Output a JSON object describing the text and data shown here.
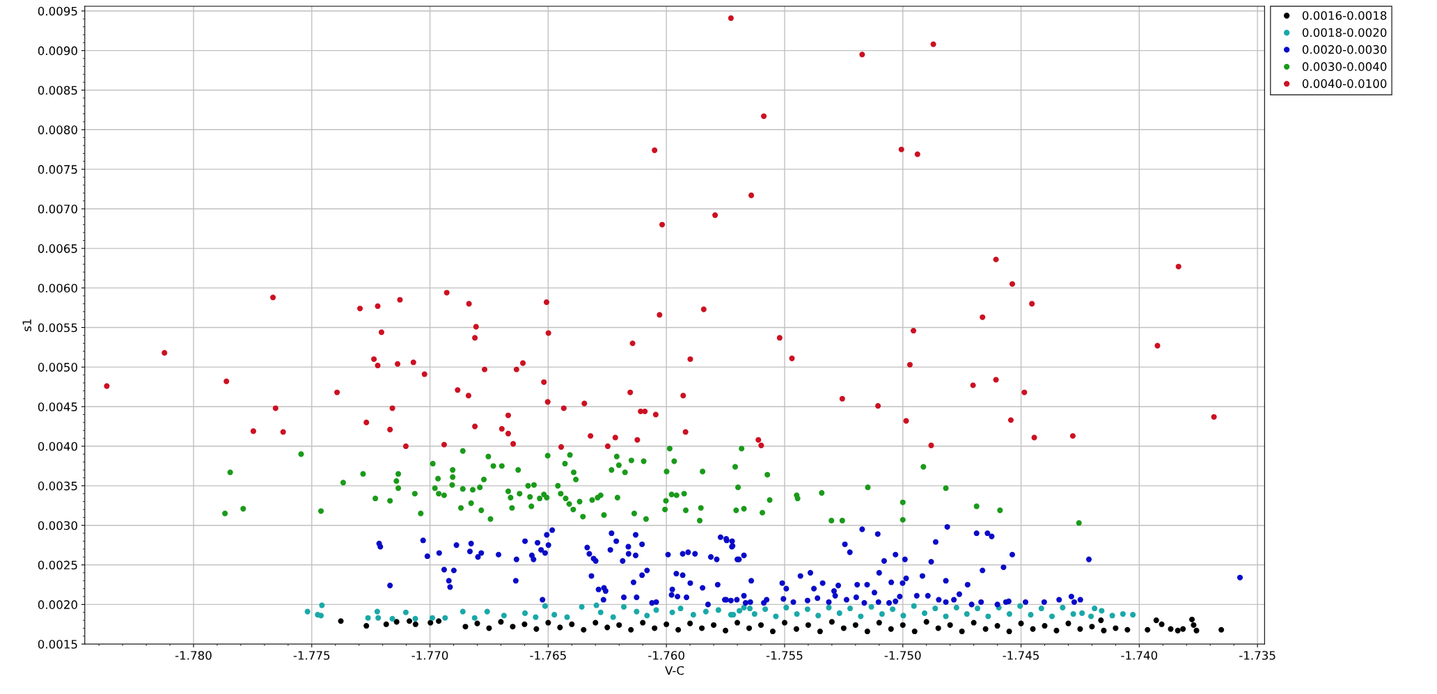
{
  "chart_data": {
    "type": "scatter",
    "xlabel": "V-C",
    "ylabel": "s1",
    "xlim": [
      -1.7846,
      -1.7347
    ],
    "ylim": [
      0.0015,
      0.00956
    ],
    "xticks": [
      {
        "value": -1.78,
        "label": "-1.780"
      },
      {
        "value": -1.775,
        "label": "-1.775"
      },
      {
        "value": -1.77,
        "label": "-1.770"
      },
      {
        "value": -1.765,
        "label": "-1.765"
      },
      {
        "value": -1.76,
        "label": "-1.760"
      },
      {
        "value": -1.755,
        "label": "-1.755"
      },
      {
        "value": -1.75,
        "label": "-1.750"
      },
      {
        "value": -1.745,
        "label": "-1.745"
      },
      {
        "value": -1.74,
        "label": "-1.740"
      },
      {
        "value": -1.735,
        "label": "-1.735"
      }
    ],
    "yticks": [
      {
        "value": 0.0015,
        "label": "0.0015"
      },
      {
        "value": 0.002,
        "label": "0.0020"
      },
      {
        "value": 0.0025,
        "label": "0.0025"
      },
      {
        "value": 0.003,
        "label": "0.0030"
      },
      {
        "value": 0.0035,
        "label": "0.0035"
      },
      {
        "value": 0.004,
        "label": "0.0040"
      },
      {
        "value": 0.0045,
        "label": "0.0045"
      },
      {
        "value": 0.005,
        "label": "0.0050"
      },
      {
        "value": 0.0055,
        "label": "0.0055"
      },
      {
        "value": 0.006,
        "label": "0.0060"
      },
      {
        "value": 0.0065,
        "label": "0.0065"
      },
      {
        "value": 0.007,
        "label": "0.0070"
      },
      {
        "value": 0.0075,
        "label": "0.0075"
      },
      {
        "value": 0.008,
        "label": "0.0080"
      },
      {
        "value": 0.0085,
        "label": "0.0085"
      },
      {
        "value": 0.009,
        "label": "0.0090"
      },
      {
        "value": 0.0095,
        "label": "0.0095"
      }
    ],
    "grid": true,
    "legend": "top right",
    "marker": "circle",
    "series": [
      {
        "name": "0.0016-0.0018",
        "color": "#000000",
        "x": [
          -1.77377,
          -1.77269,
          -1.77185,
          -1.77141,
          -1.77087,
          -1.77061,
          -1.76998,
          -1.76963,
          -1.7685,
          -1.768,
          -1.7675,
          -1.767,
          -1.7665,
          -1.766,
          -1.7655,
          -1.765,
          -1.7645,
          -1.764,
          -1.7635,
          -1.763,
          -1.7625,
          -1.762,
          -1.7615,
          -1.761,
          -1.7605,
          -1.76,
          -1.7595,
          -1.759,
          -1.7585,
          -1.758,
          -1.7575,
          -1.757,
          -1.7565,
          -1.756,
          -1.7555,
          -1.755,
          -1.7545,
          -1.754,
          -1.7535,
          -1.753,
          -1.7525,
          -1.752,
          -1.7515,
          -1.751,
          -1.7505,
          -1.75,
          -1.7495,
          -1.749,
          -1.7485,
          -1.748,
          -1.7475,
          -1.747,
          -1.7465,
          -1.746,
          -1.7455,
          -1.745,
          -1.7445,
          -1.744,
          -1.7435,
          -1.743,
          -1.7425,
          -1.742,
          -1.7415,
          -1.741,
          -1.7405,
          -1.74162,
          -1.73965,
          -1.73928,
          -1.73905,
          -1.73867,
          -1.73837,
          -1.73815,
          -1.73777,
          -1.7377,
          -1.73758,
          -1.73653
        ],
        "values": [
          0.00179,
          0.00173,
          0.00175,
          0.00178,
          0.00179,
          0.00175,
          0.00177,
          0.00179,
          0.00172,
          0.00176,
          0.0017,
          0.00178,
          0.00172,
          0.00175,
          0.00169,
          0.00177,
          0.00171,
          0.00175,
          0.00168,
          0.00177,
          0.00171,
          0.00174,
          0.00168,
          0.00177,
          0.0017,
          0.00175,
          0.00168,
          0.00176,
          0.0017,
          0.00174,
          0.00167,
          0.00177,
          0.0017,
          0.00174,
          0.00166,
          0.00177,
          0.00169,
          0.00174,
          0.00166,
          0.00178,
          0.0017,
          0.00174,
          0.00166,
          0.00177,
          0.00169,
          0.00174,
          0.00166,
          0.00178,
          0.0017,
          0.00174,
          0.00166,
          0.00177,
          0.00169,
          0.00173,
          0.00166,
          0.00176,
          0.00169,
          0.00173,
          0.00167,
          0.00176,
          0.00169,
          0.00172,
          0.00167,
          0.0017,
          0.00168,
          0.0018,
          0.00168,
          0.0018,
          0.00175,
          0.00169,
          0.00167,
          0.00169,
          0.00181,
          0.00174,
          0.00167,
          0.00168
        ]
      },
      {
        "name": "0.0018-0.0020",
        "color": "#1aa8a8",
        "x": [
          -1.77518,
          -1.77475,
          -1.77457,
          -1.77461,
          -1.77262,
          -1.77223,
          -1.77219,
          -1.77159,
          -1.77102,
          -1.77062,
          -1.7699,
          -1.76936,
          -1.76861,
          -1.76811,
          -1.76758,
          -1.76687,
          -1.76598,
          -1.76553,
          -1.76513,
          -1.76474,
          -1.7642,
          -1.76358,
          -1.76296,
          -1.76278,
          -1.76225,
          -1.7618,
          -1.76126,
          -1.76082,
          -1.76043,
          -1.75975,
          -1.7594,
          -1.75886,
          -1.75833,
          -1.7578,
          -1.75727,
          -1.75691,
          -1.75647,
          -1.75717,
          -1.75672,
          -1.75627,
          -1.75582,
          -1.75537,
          -1.75493,
          -1.75448,
          -1.75403,
          -1.75358,
          -1.75313,
          -1.75268,
          -1.75223,
          -1.75178,
          -1.75133,
          -1.75088,
          -1.75043,
          -1.74998,
          -1.74953,
          -1.74908,
          -1.74863,
          -1.74818,
          -1.74773,
          -1.74729,
          -1.74684,
          -1.74639,
          -1.74594,
          -1.74549,
          -1.74504,
          -1.74459,
          -1.74414,
          -1.74369,
          -1.74324,
          -1.74279,
          -1.74242,
          -1.74204,
          -1.74189,
          -1.74159,
          -1.74114,
          -1.74069,
          -1.74027
        ],
        "values": [
          0.00191,
          0.00187,
          0.00199,
          0.00186,
          0.00183,
          0.00191,
          0.00183,
          0.00182,
          0.0019,
          0.00182,
          0.00183,
          0.00183,
          0.00191,
          0.00183,
          0.00191,
          0.00186,
          0.00189,
          0.00184,
          0.00198,
          0.00187,
          0.00184,
          0.00197,
          0.00199,
          0.0019,
          0.00184,
          0.00197,
          0.00191,
          0.00186,
          0.00193,
          0.0019,
          0.00195,
          0.00187,
          0.00191,
          0.00193,
          0.00187,
          0.00192,
          0.00195,
          0.00187,
          0.00196,
          0.00188,
          0.00194,
          0.00185,
          0.00196,
          0.00188,
          0.00194,
          0.00186,
          0.00196,
          0.00189,
          0.00195,
          0.00185,
          0.00197,
          0.00188,
          0.00194,
          0.00186,
          0.00198,
          0.00189,
          0.00195,
          0.00185,
          0.00196,
          0.00188,
          0.00195,
          0.00185,
          0.00196,
          0.00188,
          0.00198,
          0.00187,
          0.00195,
          0.00185,
          0.00196,
          0.00188,
          0.00189,
          0.00185,
          0.00195,
          0.00192,
          0.00186,
          0.00188,
          0.00187
        ]
      },
      {
        "name": "0.0020-0.0030",
        "color": "#0a0ac8",
        "x": [
          -1.77215,
          -1.7721,
          -1.77169,
          -1.77029,
          -1.77011,
          -1.76961,
          -1.7694,
          -1.76899,
          -1.7692,
          -1.76915,
          -1.76888,
          -1.76826,
          -1.76831,
          -1.76797,
          -1.76783,
          -1.7671,
          -1.76634,
          -1.76637,
          -1.76598,
          -1.76569,
          -1.76562,
          -1.76545,
          -1.7653,
          -1.76513,
          -1.76506,
          -1.76483,
          -1.76499,
          -1.76524,
          -1.76335,
          -1.76326,
          -1.76308,
          -1.76299,
          -1.76317,
          -1.76287,
          -1.76264,
          -1.76257,
          -1.76266,
          -1.76232,
          -1.76237,
          -1.76212,
          -1.76185,
          -1.76161,
          -1.7616,
          -1.7613,
          -1.76103,
          -1.7613,
          -1.76139,
          -1.76103,
          -1.76082,
          -1.7618,
          -1.76126,
          -1.76061,
          -1.76043,
          -1.75993,
          -1.75958,
          -1.75931,
          -1.75975,
          -1.75978,
          -1.75953,
          -1.75915,
          -1.75931,
          -1.75908,
          -1.75879,
          -1.75899,
          -1.75847,
          -1.75824,
          -1.75812,
          -1.75787,
          -1.75783,
          -1.75771,
          -1.75745,
          -1.75723,
          -1.75753,
          -1.75727,
          -1.757,
          -1.75747,
          -1.75722,
          -1.7572,
          -1.75693,
          -1.75672,
          -1.75641,
          -1.75747,
          -1.75702,
          -1.75672,
          -1.75665,
          -1.75645,
          -1.75588,
          -1.75576,
          -1.7551,
          -1.75493,
          -1.75505,
          -1.75433,
          -1.75391,
          -1.75376,
          -1.75339,
          -1.75463,
          -1.75403,
          -1.75361,
          -1.75313,
          -1.75273,
          -1.75291,
          -1.75286,
          -1.75245,
          -1.75224,
          -1.75172,
          -1.75106,
          -1.75238,
          -1.75193,
          -1.75197,
          -1.75163,
          -1.75151,
          -1.7512,
          -1.751,
          -1.75079,
          -1.75031,
          -1.74991,
          -1.75049,
          -1.75001,
          -1.74986,
          -1.75013,
          -1.75103,
          -1.75058,
          -1.75031,
          -1.74917,
          -1.7488,
          -1.74861,
          -1.74818,
          -1.74812,
          -1.74941,
          -1.74894,
          -1.74848,
          -1.74818,
          -1.74784,
          -1.74761,
          -1.74726,
          -1.74688,
          -1.74663,
          -1.74642,
          -1.74624,
          -1.74574,
          -1.74537,
          -1.74709,
          -1.74669,
          -1.746,
          -1.74564,
          -1.74552,
          -1.74481,
          -1.74402,
          -1.74339,
          -1.74287,
          -1.74275,
          -1.74249,
          -1.74213,
          -1.73574
        ],
        "values": [
          0.00277,
          0.00273,
          0.00224,
          0.00281,
          0.00261,
          0.00265,
          0.00244,
          0.00243,
          0.0023,
          0.00222,
          0.00275,
          0.00277,
          0.00267,
          0.0026,
          0.00265,
          0.00263,
          0.00257,
          0.0023,
          0.0028,
          0.00262,
          0.00257,
          0.00278,
          0.00269,
          0.00265,
          0.00288,
          0.00294,
          0.00275,
          0.00206,
          0.00272,
          0.00264,
          0.00258,
          0.00255,
          0.00236,
          0.00219,
          0.00221,
          0.00217,
          0.00206,
          0.0029,
          0.00269,
          0.0028,
          0.00255,
          0.00273,
          0.00264,
          0.00288,
          0.00276,
          0.00262,
          0.00228,
          0.00237,
          0.00243,
          0.00209,
          0.00209,
          0.00202,
          0.00203,
          0.00263,
          0.00239,
          0.00237,
          0.00219,
          0.00212,
          0.0021,
          0.00209,
          0.00264,
          0.00266,
          0.00264,
          0.00227,
          0.00221,
          0.002,
          0.0026,
          0.00257,
          0.00225,
          0.00285,
          0.00281,
          0.00273,
          0.00206,
          0.00205,
          0.00257,
          0.00283,
          0.0028,
          0.00274,
          0.00257,
          0.00262,
          0.0023,
          0.00206,
          0.00206,
          0.00211,
          0.00202,
          0.00203,
          0.00202,
          0.00206,
          0.00227,
          0.0022,
          0.00207,
          0.00236,
          0.0024,
          0.0022,
          0.00227,
          0.00203,
          0.00205,
          0.00208,
          0.00203,
          0.00224,
          0.00217,
          0.00211,
          0.00276,
          0.00266,
          0.00295,
          0.00289,
          0.00206,
          0.00225,
          0.00209,
          0.00202,
          0.00225,
          0.00215,
          0.0024,
          0.00255,
          0.00263,
          0.00257,
          0.00228,
          0.00227,
          0.00233,
          0.0021,
          0.00203,
          0.00202,
          0.00204,
          0.00236,
          0.00254,
          0.00279,
          0.0023,
          0.00298,
          0.00211,
          0.00211,
          0.00206,
          0.00203,
          0.00206,
          0.00213,
          0.00225,
          0.0029,
          0.00243,
          0.0029,
          0.00286,
          0.00247,
          0.00263,
          0.002,
          0.00203,
          0.002,
          0.00203,
          0.00204,
          0.00203,
          0.00203,
          0.00206,
          0.0021,
          0.00203,
          0.00206,
          0.00257,
          0.00234
        ]
      },
      {
        "name": "0.0030-0.0040",
        "color": "#1a9a1a",
        "x": [
          -1.77545,
          -1.77845,
          -1.77367,
          -1.77283,
          -1.77134,
          -1.77142,
          -1.76988,
          -1.76966,
          -1.76904,
          -1.76904,
          -1.76861,
          -1.76753,
          -1.76732,
          -1.76696,
          -1.76627,
          -1.76772,
          -1.76502,
          -1.76429,
          -1.76408,
          -1.76392,
          -1.76383,
          -1.76232,
          -1.7621,
          -1.76201,
          -1.76175,
          -1.76148,
          -1.76096,
          -1.75986,
          -1.75999,
          -1.75967,
          -1.75847,
          -1.75709,
          -1.75682,
          -1.77867,
          -1.7779,
          -1.77461,
          -1.77231,
          -1.77169,
          -1.77134,
          -1.77064,
          -1.77039,
          -1.76979,
          -1.76963,
          -1.7694,
          -1.76906,
          -1.76869,
          -1.76861,
          -1.76826,
          -1.76819,
          -1.76789,
          -1.76783,
          -1.76744,
          -1.76669,
          -1.76659,
          -1.76653,
          -1.76621,
          -1.76585,
          -1.7656,
          -1.76577,
          -1.76571,
          -1.76536,
          -1.76518,
          -1.76506,
          -1.76459,
          -1.76447,
          -1.76426,
          -1.76411,
          -1.76394,
          -1.76367,
          -1.76353,
          -1.76314,
          -1.76291,
          -1.76278,
          -1.76264,
          -1.76207,
          -1.76136,
          -1.76086,
          -1.76002,
          -1.76006,
          -1.75978,
          -1.75957,
          -1.75925,
          -1.75918,
          -1.75854,
          -1.75859,
          -1.75705,
          -1.75697,
          -1.75573,
          -1.75672,
          -1.75563,
          -1.75594,
          -1.75449,
          -1.75445,
          -1.75343,
          -1.75302,
          -1.75256,
          -1.75148,
          -1.75,
          -1.75,
          -1.74913,
          -1.74818,
          -1.74688,
          -1.74589,
          -1.74255
        ],
        "values": [
          0.0039,
          0.00367,
          0.00354,
          0.00365,
          0.00365,
          0.00356,
          0.00378,
          0.00359,
          0.0037,
          0.00361,
          0.00394,
          0.00387,
          0.00375,
          0.00375,
          0.0037,
          0.00358,
          0.00388,
          0.00378,
          0.00389,
          0.00367,
          0.00358,
          0.0037,
          0.00387,
          0.00376,
          0.00367,
          0.00382,
          0.00381,
          0.00397,
          0.00368,
          0.00381,
          0.00368,
          0.00374,
          0.00397,
          0.00315,
          0.00321,
          0.00318,
          0.00334,
          0.00331,
          0.00347,
          0.0034,
          0.00315,
          0.00347,
          0.0034,
          0.00338,
          0.00351,
          0.00322,
          0.00346,
          0.00328,
          0.00345,
          0.00348,
          0.00319,
          0.00308,
          0.00343,
          0.00335,
          0.00322,
          0.0034,
          0.0035,
          0.00351,
          0.00336,
          0.00324,
          0.00334,
          0.00339,
          0.00335,
          0.0035,
          0.0034,
          0.00334,
          0.00327,
          0.0032,
          0.0033,
          0.00311,
          0.00332,
          0.00335,
          0.00338,
          0.00313,
          0.00335,
          0.00315,
          0.00308,
          0.00331,
          0.0032,
          0.00339,
          0.00338,
          0.0034,
          0.00319,
          0.00322,
          0.00306,
          0.00319,
          0.00348,
          0.00364,
          0.00321,
          0.00332,
          0.00316,
          0.00338,
          0.00334,
          0.00341,
          0.00306,
          0.00306,
          0.00348,
          0.00329,
          0.00307,
          0.00374,
          0.00347,
          0.00324,
          0.00319,
          0.00303
        ]
      },
      {
        "name": "0.0040-0.0100",
        "color": "#cc1122",
        "x": [
          -1.78367,
          -1.78123,
          -1.77861,
          -1.77664,
          -1.77653,
          -1.77747,
          -1.77621,
          -1.77393,
          -1.77296,
          -1.77221,
          -1.77205,
          -1.77127,
          -1.77237,
          -1.77221,
          -1.77137,
          -1.7707,
          -1.77023,
          -1.77159,
          -1.77269,
          -1.77169,
          -1.77102,
          -1.76929,
          -1.76835,
          -1.76805,
          -1.7681,
          -1.76769,
          -1.76883,
          -1.76837,
          -1.7694,
          -1.7681,
          -1.76669,
          -1.76696,
          -1.76669,
          -1.76648,
          -1.76634,
          -1.76607,
          -1.76507,
          -1.76499,
          -1.76518,
          -1.76502,
          -1.76434,
          -1.76445,
          -1.76347,
          -1.76321,
          -1.76248,
          -1.76216,
          -1.76153,
          -1.76143,
          -1.76123,
          -1.76109,
          -1.76091,
          -1.76045,
          -1.7605,
          -1.76018,
          -1.76029,
          -1.75929,
          -1.75919,
          -1.75899,
          -1.75842,
          -1.75794,
          -1.75727,
          -1.75172,
          -1.74871,
          -1.75588,
          -1.75006,
          -1.74938,
          -1.75641,
          -1.74606,
          -1.73834,
          -1.74537,
          -1.74454,
          -1.74663,
          -1.75521,
          -1.74955,
          -1.73923,
          -1.75469,
          -1.7497,
          -1.74703,
          -1.74606,
          -1.74486,
          -1.75256,
          -1.75105,
          -1.74986,
          -1.74543,
          -1.73684,
          -1.74281,
          -1.74444,
          -1.7488,
          -1.75611,
          -1.75599
        ],
        "values": [
          0.00476,
          0.00518,
          0.00482,
          0.00588,
          0.00448,
          0.00419,
          0.00418,
          0.00468,
          0.00574,
          0.00577,
          0.00544,
          0.00585,
          0.0051,
          0.00502,
          0.00504,
          0.00506,
          0.00491,
          0.00448,
          0.0043,
          0.00421,
          0.004,
          0.00594,
          0.0058,
          0.00551,
          0.00537,
          0.00497,
          0.00471,
          0.00464,
          0.00402,
          0.00425,
          0.00439,
          0.00422,
          0.00416,
          0.00403,
          0.00497,
          0.00505,
          0.00582,
          0.00543,
          0.00481,
          0.00456,
          0.00448,
          0.00399,
          0.00454,
          0.00413,
          0.004,
          0.00411,
          0.00468,
          0.0053,
          0.00408,
          0.00444,
          0.00444,
          0.0044,
          0.00774,
          0.0068,
          0.00566,
          0.00464,
          0.00418,
          0.0051,
          0.00573,
          0.00692,
          0.00941,
          0.00895,
          0.00908,
          0.00817,
          0.00775,
          0.00769,
          0.00717,
          0.00636,
          0.00627,
          0.00605,
          0.0058,
          0.00563,
          0.00537,
          0.00546,
          0.00527,
          0.00511,
          0.00503,
          0.00477,
          0.00484,
          0.00468,
          0.0046,
          0.00451,
          0.00432,
          0.00433,
          0.00437,
          0.00413,
          0.00411,
          0.00401,
          0.00408,
          0.00401
        ]
      }
    ]
  }
}
